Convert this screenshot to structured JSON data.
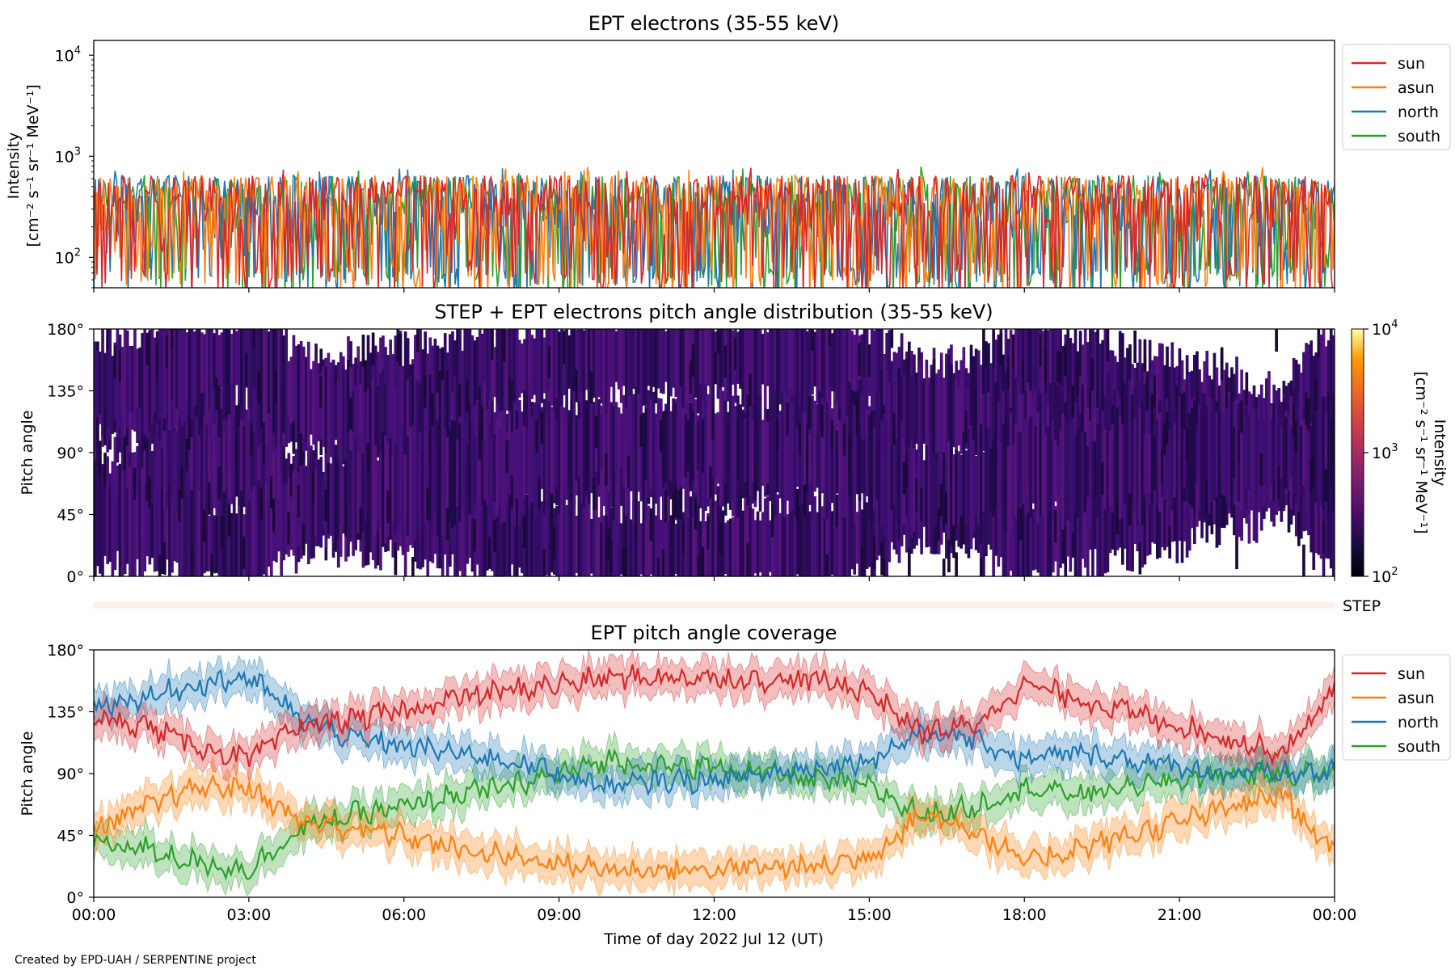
{
  "figure": {
    "credit": "Created by EPD-UAH / SERPENTINE project",
    "xlabel": "Time of day 2022 Jul 12 (UT)",
    "x_ticks": [
      "00:00",
      "03:00",
      "06:00",
      "09:00",
      "12:00",
      "15:00",
      "18:00",
      "21:00",
      "00:00"
    ]
  },
  "colors": {
    "sun": "#d62728",
    "asun": "#ff7f0e",
    "north": "#1f77b4",
    "south": "#2ca02c"
  },
  "chart_data": [
    {
      "id": "intensity",
      "type": "line",
      "title": "EPT electrons (35-55 keV)",
      "ylabel_line1": "Intensity",
      "ylabel_line2": "[cm⁻² s⁻¹ sr⁻¹ MeV⁻¹]",
      "yscale": "log",
      "ylim": [
        50,
        14000
      ],
      "xlim_hours": [
        0,
        24
      ],
      "y_ticks": [
        {
          "base": "10",
          "exp": "2"
        },
        {
          "base": "10",
          "exp": "3"
        },
        {
          "base": "10",
          "exp": "4"
        }
      ],
      "legend": [
        "sun",
        "asun",
        "north",
        "south"
      ],
      "legend_position": "outside-right-top",
      "series_typical_range": [
        60,
        650
      ],
      "series_peak": 800,
      "grid": false
    },
    {
      "id": "pad",
      "type": "heatmap",
      "title": "STEP + EPT electrons pitch angle distribution (35-55 keV)",
      "ylabel": "Pitch angle",
      "ylim": [
        0,
        180
      ],
      "y_ticks": [
        "0°",
        "45°",
        "90°",
        "135°",
        "180°"
      ],
      "colorbar_label_line1": "Intensity",
      "colorbar_label_line2": "[cm⁻² s⁻¹ sr⁻¹ MeV⁻¹]",
      "colorbar_ticks": [
        {
          "base": "10",
          "exp": "2"
        },
        {
          "base": "10",
          "exp": "3"
        },
        {
          "base": "10",
          "exp": "4"
        }
      ],
      "colorbar_range": [
        100,
        10000
      ],
      "colormap": "inferno",
      "grid": false
    },
    {
      "id": "step",
      "type": "bar",
      "label": "STEP"
    },
    {
      "id": "coverage",
      "type": "area",
      "title": "EPT pitch angle coverage",
      "ylabel": "Pitch angle",
      "ylim": [
        0,
        180
      ],
      "xlim_hours": [
        0,
        24
      ],
      "y_ticks": [
        "0°",
        "45°",
        "90°",
        "135°",
        "180°"
      ],
      "legend": [
        "sun",
        "asun",
        "north",
        "south"
      ],
      "legend_position": "outside-right-top",
      "time_hours": [
        0,
        1,
        2,
        3,
        4,
        5,
        6,
        7,
        8,
        9,
        10,
        11,
        12,
        13,
        14,
        15,
        16,
        17,
        18,
        19,
        20,
        21,
        22,
        23,
        24
      ],
      "series": [
        {
          "name": "sun",
          "values": [
            130,
            125,
            110,
            100,
            125,
            130,
            135,
            145,
            150,
            155,
            160,
            160,
            160,
            158,
            158,
            150,
            120,
            125,
            155,
            145,
            135,
            125,
            115,
            105,
            150
          ]
        },
        {
          "name": "asun",
          "values": [
            50,
            65,
            80,
            80,
            55,
            50,
            45,
            35,
            30,
            25,
            20,
            20,
            20,
            22,
            22,
            30,
            60,
            50,
            25,
            35,
            45,
            55,
            65,
            75,
            30
          ]
        },
        {
          "name": "north",
          "values": [
            140,
            145,
            155,
            160,
            130,
            115,
            110,
            105,
            100,
            90,
            80,
            85,
            85,
            90,
            95,
            100,
            120,
            115,
            100,
            105,
            100,
            95,
            90,
            90,
            90
          ]
        },
        {
          "name": "south",
          "values": [
            40,
            35,
            25,
            20,
            50,
            60,
            65,
            75,
            80,
            90,
            100,
            95,
            95,
            90,
            85,
            80,
            60,
            65,
            80,
            75,
            80,
            85,
            90,
            90,
            90
          ]
        }
      ],
      "band_halfwidth_deg": 12,
      "grid": false
    }
  ]
}
